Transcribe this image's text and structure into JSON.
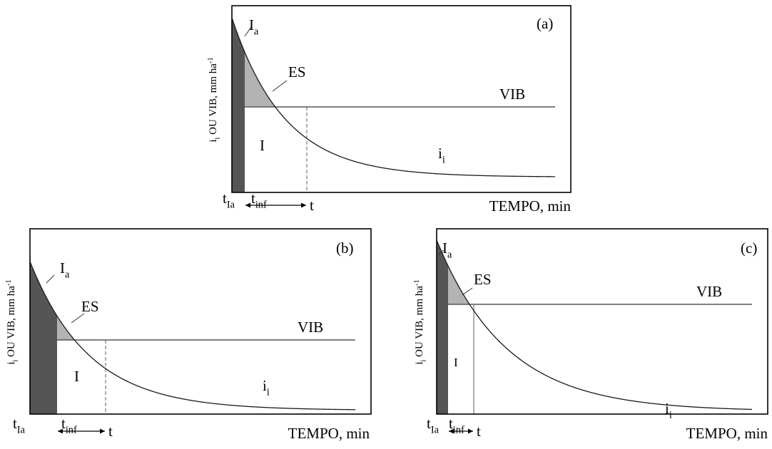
{
  "colors": {
    "frame": "#000000",
    "curve": "#1a1a1a",
    "vib_line": "#555555",
    "ia_fill": "#555555",
    "es_fill": "#b3b3b3",
    "dashed": "#777777"
  },
  "panels": [
    {
      "id": "a",
      "panel_label": "(a)",
      "ylabel": {
        "main": "i",
        "sub": "i",
        "rest": " OU VIB, mm ha",
        "sup": "-1"
      },
      "xlabel": "TEMPO, min",
      "labels": {
        "ia": {
          "main": "I",
          "sub": "a"
        },
        "es": "ES",
        "vib": "VIB",
        "i": "I",
        "ii": {
          "main": "i",
          "sub": "i"
        },
        "t_ia": {
          "main": "t",
          "sub": "Ia"
        },
        "t_inf": {
          "main": "t",
          "sub": "inf"
        },
        "t": "t"
      }
    },
    {
      "id": "b",
      "panel_label": "(b)",
      "ylabel": {
        "main": "i",
        "sub": "i",
        "rest": " OU VIB, mm ha",
        "sup": "-1"
      },
      "xlabel": "TEMPO, min",
      "labels": {
        "ia": {
          "main": "I",
          "sub": "a"
        },
        "es": "ES",
        "vib": "VIB",
        "i": "I",
        "ii": {
          "main": "i",
          "sub": "i"
        },
        "t_ia": {
          "main": "t",
          "sub": "Ia"
        },
        "t_inf": {
          "main": "t",
          "sub": "inf"
        },
        "t": "t"
      }
    },
    {
      "id": "c",
      "panel_label": "(c)",
      "ylabel": {
        "main": "i",
        "sub": "i",
        "rest": " OU VIB, mm ha",
        "sup": "-1"
      },
      "xlabel": "TEMPO, min",
      "labels": {
        "ia": {
          "main": "I",
          "sub": "a"
        },
        "es": "ES",
        "vib": "VIB",
        "i": "I",
        "ii": {
          "main": "i",
          "sub": "i"
        },
        "t_ia": {
          "main": "t",
          "sub": "Ia"
        },
        "t_inf": {
          "main": "t",
          "sub": "inf"
        },
        "t": "t"
      }
    }
  ]
}
